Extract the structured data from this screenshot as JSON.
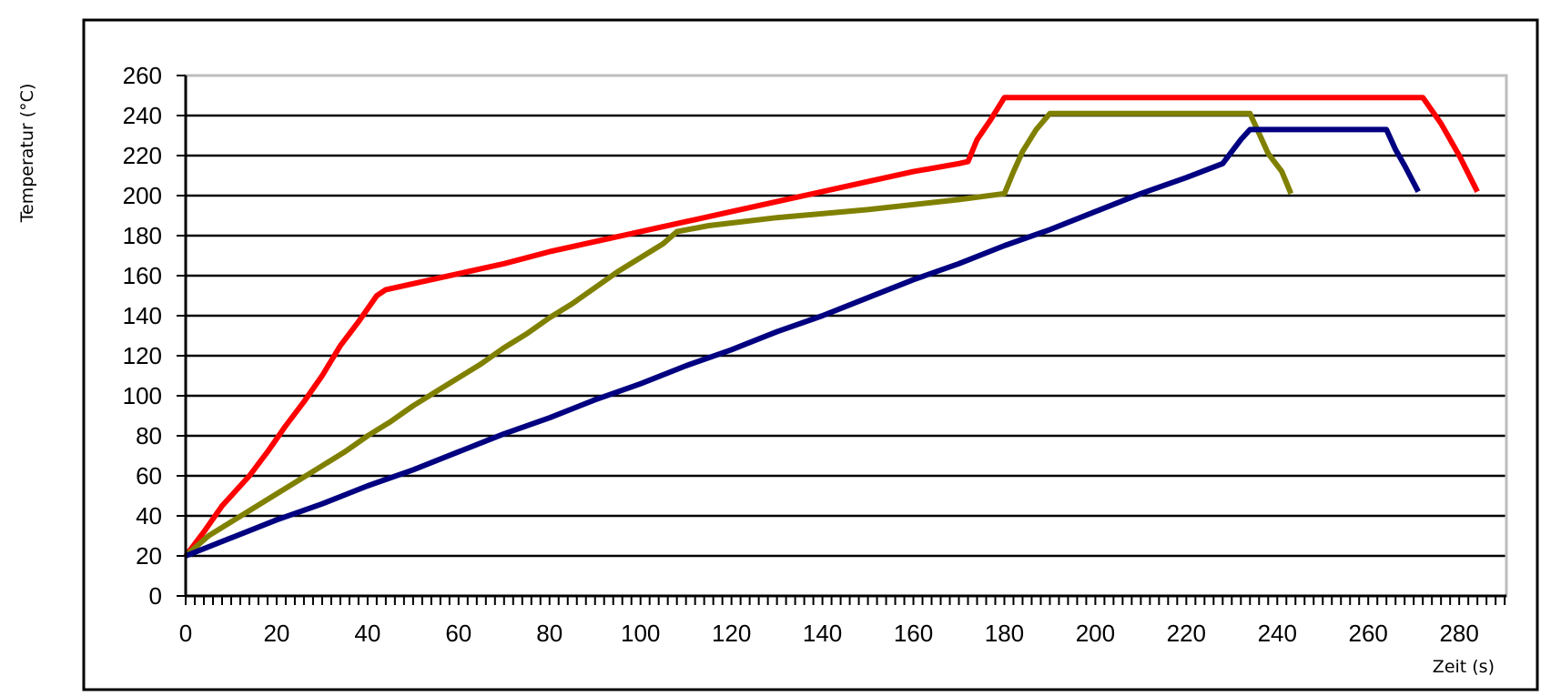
{
  "chart_data": {
    "type": "line",
    "title": "",
    "xlabel": "Zeit (s)",
    "ylabel": "Temperatur (°C)",
    "xlim": [
      0,
      290
    ],
    "ylim": [
      0,
      260
    ],
    "x_ticks": [
      0,
      20,
      40,
      60,
      80,
      100,
      120,
      140,
      160,
      180,
      200,
      220,
      240,
      260,
      280
    ],
    "y_ticks": [
      0,
      20,
      40,
      60,
      80,
      100,
      120,
      140,
      160,
      180,
      200,
      220,
      240,
      260
    ],
    "x_minor_tick_step": 2,
    "grid": "horizontal",
    "legend": "none",
    "series": [
      {
        "color": "#ff0000",
        "x": [
          0,
          4,
          8,
          10,
          14,
          18,
          22,
          26,
          30,
          34,
          38,
          42,
          44,
          50,
          60,
          70,
          80,
          90,
          100,
          110,
          120,
          130,
          140,
          150,
          160,
          170,
          172,
          174,
          177,
          180,
          200,
          220,
          240,
          260,
          272,
          276,
          280,
          284
        ],
        "y": [
          20,
          32,
          45,
          50,
          60,
          72,
          85,
          97,
          110,
          125,
          137,
          150,
          153,
          156,
          161,
          166,
          172,
          177,
          182,
          187,
          192,
          197,
          202,
          207,
          212,
          216,
          217,
          228,
          238,
          249,
          249,
          249,
          249,
          249,
          249,
          236,
          220,
          202
        ]
      },
      {
        "color": "#808000",
        "x": [
          0,
          5,
          10,
          15,
          20,
          25,
          30,
          35,
          40,
          45,
          50,
          55,
          60,
          65,
          70,
          75,
          80,
          85,
          90,
          95,
          100,
          105,
          108,
          115,
          130,
          150,
          170,
          180,
          182,
          184,
          187,
          190,
          200,
          220,
          234,
          236,
          238,
          241,
          243
        ],
        "y": [
          20,
          30,
          37,
          44,
          51,
          58,
          65,
          72,
          80,
          87,
          95,
          102,
          109,
          116,
          124,
          131,
          139,
          146,
          154,
          162,
          169,
          176,
          182,
          185,
          189,
          193,
          198,
          201,
          212,
          222,
          233,
          241,
          241,
          241,
          241,
          231,
          221,
          212,
          201
        ]
      },
      {
        "color": "#000080",
        "x": [
          0,
          10,
          20,
          30,
          40,
          50,
          60,
          70,
          80,
          90,
          100,
          110,
          120,
          130,
          140,
          150,
          160,
          170,
          180,
          190,
          200,
          210,
          220,
          228,
          230,
          232,
          234,
          240,
          250,
          260,
          264,
          266,
          268,
          271
        ],
        "y": [
          20,
          29,
          38,
          46,
          55,
          63,
          72,
          81,
          89,
          98,
          106,
          115,
          123,
          132,
          140,
          149,
          158,
          166,
          175,
          183,
          192,
          201,
          209,
          216,
          222,
          228,
          233,
          233,
          233,
          233,
          233,
          223,
          215,
          202
        ]
      }
    ]
  }
}
